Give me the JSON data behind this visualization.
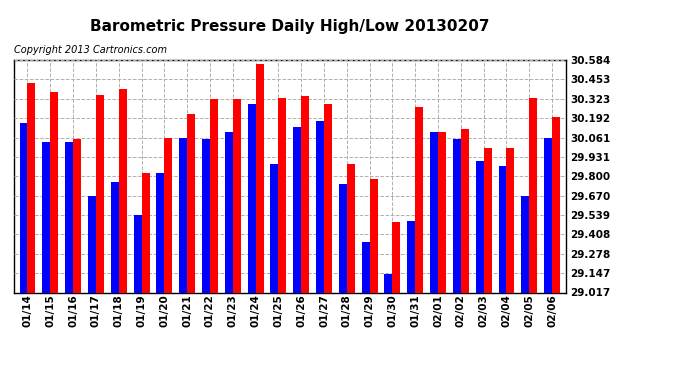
{
  "title": "Barometric Pressure Daily High/Low 20130207",
  "copyright": "Copyright 2013 Cartronics.com",
  "dates": [
    "01/14",
    "01/15",
    "01/16",
    "01/17",
    "01/18",
    "01/19",
    "01/20",
    "01/21",
    "01/22",
    "01/23",
    "01/24",
    "01/25",
    "01/26",
    "01/27",
    "01/28",
    "01/29",
    "01/30",
    "01/31",
    "02/01",
    "02/02",
    "02/03",
    "02/04",
    "02/05",
    "02/06"
  ],
  "low_values": [
    30.16,
    30.03,
    30.03,
    29.67,
    29.76,
    29.54,
    29.82,
    30.06,
    30.05,
    30.1,
    30.29,
    29.88,
    30.13,
    30.17,
    29.75,
    29.36,
    29.14,
    29.5,
    30.1,
    30.05,
    29.9,
    29.87,
    29.67,
    30.06
  ],
  "high_values": [
    30.43,
    30.37,
    30.05,
    30.35,
    30.39,
    29.82,
    30.06,
    30.22,
    30.32,
    30.32,
    30.56,
    30.33,
    30.34,
    30.29,
    29.88,
    29.78,
    29.49,
    30.27,
    30.1,
    30.12,
    29.99,
    29.99,
    30.33,
    30.2
  ],
  "ylim_min": 29.017,
  "ylim_max": 30.584,
  "yticks": [
    29.017,
    29.147,
    29.278,
    29.408,
    29.539,
    29.67,
    29.8,
    29.931,
    30.061,
    30.192,
    30.323,
    30.453,
    30.584
  ],
  "low_color": "#0000ff",
  "high_color": "#ff0000",
  "background_color": "#ffffff",
  "bar_width": 0.35,
  "grid_color": "#b0b0b0",
  "title_fontsize": 11,
  "copyright_fontsize": 7
}
